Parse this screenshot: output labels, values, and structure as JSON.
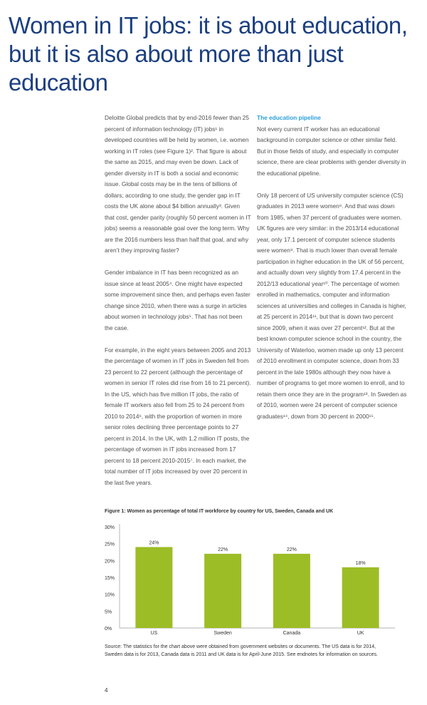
{
  "title": "Women in IT jobs: it is about education, but it is also about more than just education",
  "left_column": [
    "Deloitte Global predicts that by end-2016 fewer than 25 percent of information technology (IT) jobs¹ in developed countries will be held by women, i.e. women working in IT roles (see Figure 1)². That figure is about the same as 2015, and may even be down. Lack of gender diversity in IT is both a social and economic issue. Global costs may be in the tens of billions of dollars; according to one study, the gender gap in IT costs the UK alone about $4 billion annually³. Given that cost, gender parity (roughly 50 percent women in IT jobs) seems a reasonable goal over the long term. Why are the 2016 numbers less than half that goal, and why aren’t they improving faster?",
    "Gender imbalance in IT has been recognized as an issue since at least 2005⁴. One might have expected some improvement since then, and perhaps even faster change since 2010, when there was a surge in articles about women in technology jobs⁵. That has not been the case.",
    "For example, in the eight years between 2005 and 2013 the percentage of women in IT jobs in Sweden fell from 23 percent to 22 percent (although the percentage of women in senior IT roles did rise from 16 to 21 percent). In the US, which has five million IT jobs, the ratio of female IT workers also fell from 25 to 24 percent from 2010 to 2014⁶, with the proportion of women in more senior roles declining three percentage points to 27 percent in 2014. In the UK, with 1.2 million IT posts, the percentage of women in IT jobs increased from 17 percent to 18 percent 2010-2015⁷. In each market, the total number of IT jobs increased by over 20 percent in the last five years."
  ],
  "right_column": {
    "subheading": "The education pipeline",
    "paragraphs": [
      "Not every current IT worker has an educational background in computer science or other similar field. But in those fields of study, and especially in computer science, there are clear problems with gender diversity in the educational pipeline.",
      "Only 18 percent of US university computer science (CS) graduates in 2013 were women⁸. And that was down from 1985, when 37 percent of graduates were women. UK figures are very similar: in the 2013/14 educational year, only 17.1 percent of computer science students were women⁹. That is much lower than overall female participation in higher education in the UK of 56 percent, and actually down very slightly from 17.4 percent in the 2012/13 educational year¹⁰. The percentage of women enrolled in mathematics, computer and information sciences at universities and colleges in Canada is higher, at 25 percent in 2014¹¹, but that is down two percent since 2009, when it was over 27 percent¹². But at the best known computer science school in the country, the University of Waterloo, women made up only 13 percent of 2010 enrollment in computer science, down from 33 percent in the late 1980s although they now have a number of programs to get more women to enroll, and to retain them once they are in the program¹³. In Sweden as of 2010, women were 24 percent of computer science graduates¹⁴, down from 30 percent in 2000¹⁵."
    ]
  },
  "chart_data": {
    "type": "bar",
    "title": "Figure 1: Women as percentage of total IT workforce by country for US, Sweden, Canada and UK",
    "categories": [
      "US",
      "Sweden",
      "Canada",
      "UK"
    ],
    "values": [
      24,
      22,
      22,
      18
    ],
    "data_labels": [
      "24%",
      "22%",
      "22%",
      "18%"
    ],
    "yticks": [
      "0%",
      "5%",
      "10%",
      "15%",
      "20%",
      "25%",
      "30%"
    ],
    "ylim": [
      0,
      30
    ],
    "xlabel": "",
    "ylabel": "",
    "grid": false,
    "bar_color": "#9dbd26"
  },
  "source": "Source: The statistics for the chart above were obtained from government websites or documents. The US data is for 2014, Sweden data is for 2013, Canada data is 2011 and UK data is for April-June 2015. See endnotes for information on sources.",
  "page_number": "4"
}
